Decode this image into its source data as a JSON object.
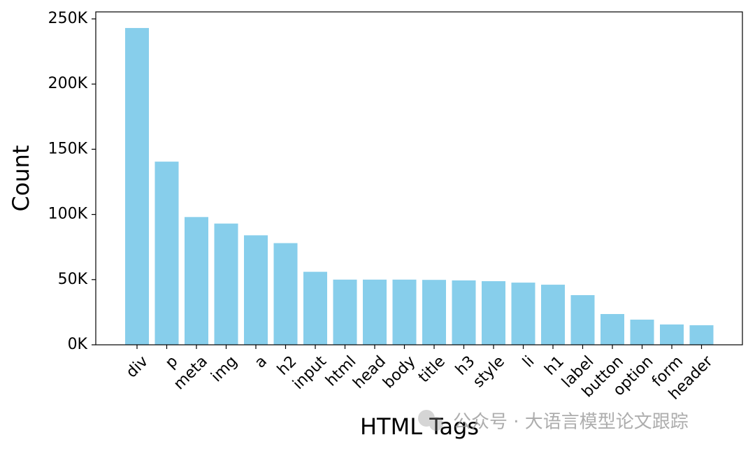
{
  "chart_data": {
    "type": "bar",
    "xlabel": "HTML Tags",
    "ylabel": "Count",
    "categories": [
      "div",
      "p",
      "meta",
      "img",
      "a",
      "h2",
      "input",
      "html",
      "head",
      "body",
      "title",
      "h3",
      "style",
      "li",
      "h1",
      "label",
      "button",
      "option",
      "form",
      "header"
    ],
    "values": [
      243000,
      140500,
      98000,
      93000,
      84000,
      78000,
      56000,
      50000,
      50000,
      50000,
      49800,
      49400,
      48800,
      47700,
      46100,
      38100,
      23600,
      19300,
      15600,
      15000
    ],
    "color": "#87ceeb",
    "ylim": [
      0,
      250000
    ],
    "yticks": [
      {
        "value": 0,
        "label": "0K"
      },
      {
        "value": 50000,
        "label": "50K"
      },
      {
        "value": 100000,
        "label": "100K"
      },
      {
        "value": 150000,
        "label": "150K"
      },
      {
        "value": 200000,
        "label": "200K"
      },
      {
        "value": 250000,
        "label": "250K"
      }
    ],
    "grid": false,
    "watermark": "公众号 · 大语言模型论文跟踪"
  }
}
